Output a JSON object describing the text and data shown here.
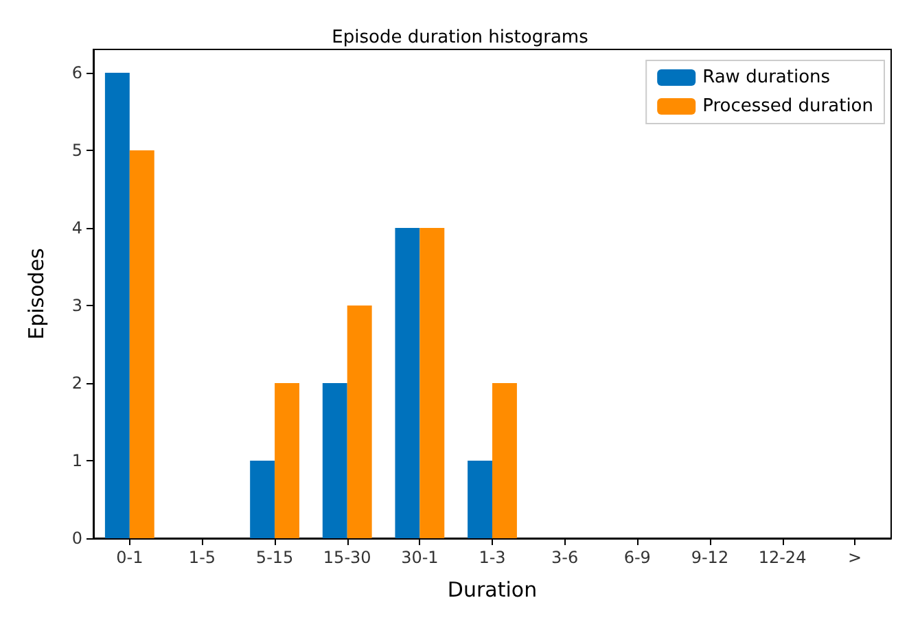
{
  "chart_data": {
    "type": "bar",
    "title": "Episode duration histograms",
    "xlabel": "Duration",
    "ylabel": "Episodes",
    "categories": [
      "0-1",
      "1-5",
      "5-15",
      "15-30",
      "30-1",
      "1-3",
      "3-6",
      "6-9",
      "9-12",
      "12-24",
      ">"
    ],
    "series": [
      {
        "name": "Raw durations",
        "color": "#0072bd",
        "values": [
          6,
          0,
          1,
          2,
          4,
          1,
          0,
          0,
          0,
          0,
          0
        ]
      },
      {
        "name": "Processed duration",
        "color": "#ff8c00",
        "values": [
          5,
          0,
          2,
          3,
          4,
          2,
          0,
          0,
          0,
          0,
          0
        ]
      }
    ],
    "ylim": [
      0,
      6.3
    ],
    "yticks": [
      0,
      1,
      2,
      3,
      4,
      5,
      6
    ],
    "grid": false,
    "legend": "top right"
  }
}
